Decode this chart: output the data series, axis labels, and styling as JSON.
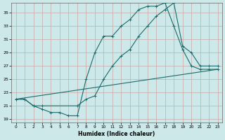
{
  "xlabel": "Humidex (Indice chaleur)",
  "bg_color": "#cce8e8",
  "line_color": "#1a6b6b",
  "grid_color": "#b8d4d4",
  "xlim": [
    -0.5,
    23.5
  ],
  "ylim": [
    18.5,
    36.5
  ],
  "xticks": [
    0,
    1,
    2,
    3,
    4,
    5,
    6,
    7,
    8,
    9,
    10,
    11,
    12,
    13,
    14,
    15,
    16,
    17,
    18,
    19,
    20,
    21,
    22,
    23
  ],
  "yticks": [
    19,
    21,
    23,
    25,
    27,
    29,
    31,
    33,
    35
  ],
  "line1_x": [
    0,
    1,
    2,
    3,
    4,
    5,
    6,
    7,
    8,
    9,
    10,
    11,
    12,
    13,
    14,
    15,
    16,
    17,
    18,
    19,
    20,
    21,
    22,
    23
  ],
  "line1_y": [
    22.0,
    22.0,
    21.0,
    20.5,
    20.0,
    20.0,
    19.5,
    19.5,
    25.0,
    29.0,
    31.5,
    31.5,
    33.0,
    34.0,
    35.5,
    36.0,
    36.0,
    36.5,
    33.0,
    29.5,
    27.0,
    26.5,
    26.5,
    26.5
  ],
  "line2_x": [
    0,
    1,
    2,
    3,
    7,
    8,
    9,
    10,
    11,
    12,
    13,
    14,
    15,
    16,
    17,
    18,
    19,
    20,
    21,
    22,
    23
  ],
  "line2_y": [
    22.0,
    22.0,
    21.0,
    21.0,
    21.0,
    22.0,
    22.5,
    25.0,
    27.0,
    28.5,
    29.5,
    31.5,
    33.0,
    34.5,
    35.5,
    36.5,
    30.0,
    29.0,
    27.0,
    27.0,
    27.0
  ],
  "line3_x": [
    0,
    23
  ],
  "line3_y": [
    22.0,
    26.5
  ]
}
